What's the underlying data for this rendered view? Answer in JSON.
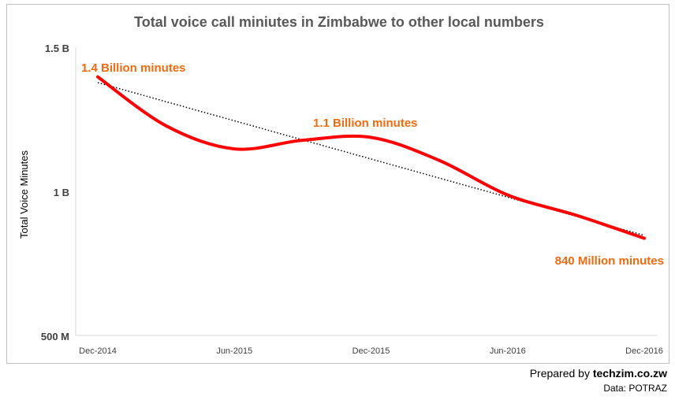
{
  "chart_data": {
    "type": "line",
    "title": "Total voice call miniutes in Zimbabwe to other local numbers",
    "xlabel": "",
    "ylabel": "Total Voice Minutes",
    "x_ticks": [
      "Dec-2014",
      "Jun-2015",
      "Dec-2015",
      "Jun-2016",
      "Dec-2016"
    ],
    "y_ticks": [
      {
        "value": 500000000,
        "label": "500 M"
      },
      {
        "value": 1000000000,
        "label": "1 B"
      },
      {
        "value": 1500000000,
        "label": "1.5 B"
      }
    ],
    "ylim": [
      500000000,
      1500000000
    ],
    "x_months": [
      "Dec-2014",
      "Mar-2015",
      "Jun-2015",
      "Sep-2015",
      "Dec-2015",
      "Mar-2016",
      "Jun-2016",
      "Sep-2016",
      "Dec-2016"
    ],
    "series": [
      {
        "color": "#ff0000",
        "values": [
          1400000000,
          1230000000,
          1150000000,
          1180000000,
          1190000000,
          1110000000,
          990000000,
          920000000,
          840000000
        ]
      }
    ],
    "trendline": {
      "style": "dotted",
      "color": "#000000",
      "start": 1380000000,
      "end": 850000000
    },
    "annotations": [
      {
        "text": "1.4 Billion minutes",
        "color": "#f26a10"
      },
      {
        "text": "1.1 Billion minutes",
        "color": "#f26a10"
      },
      {
        "text": "840 Million minutes",
        "color": "#f26a10"
      }
    ],
    "grid": false
  },
  "footer": {
    "prepared_prefix": "Prepared by ",
    "prepared_site": "techzim.co.zw",
    "source": "Data: POTRAZ"
  }
}
